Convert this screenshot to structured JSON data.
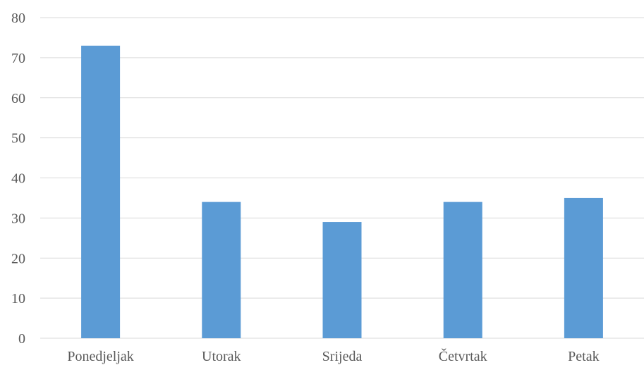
{
  "chart_data": {
    "type": "bar",
    "categories": [
      "Ponedjeljak",
      "Utorak",
      "Srijeda",
      "Četvrtak",
      "Petak"
    ],
    "values": [
      73,
      34,
      29,
      34,
      35
    ],
    "yticks": [
      0,
      10,
      20,
      30,
      40,
      50,
      60,
      70,
      80
    ],
    "ylim": [
      0,
      80
    ],
    "grid": true,
    "legend": "none",
    "bar_color": "#5B9BD5",
    "grid_color": "#D9D9D9",
    "text_color": "#595959"
  }
}
